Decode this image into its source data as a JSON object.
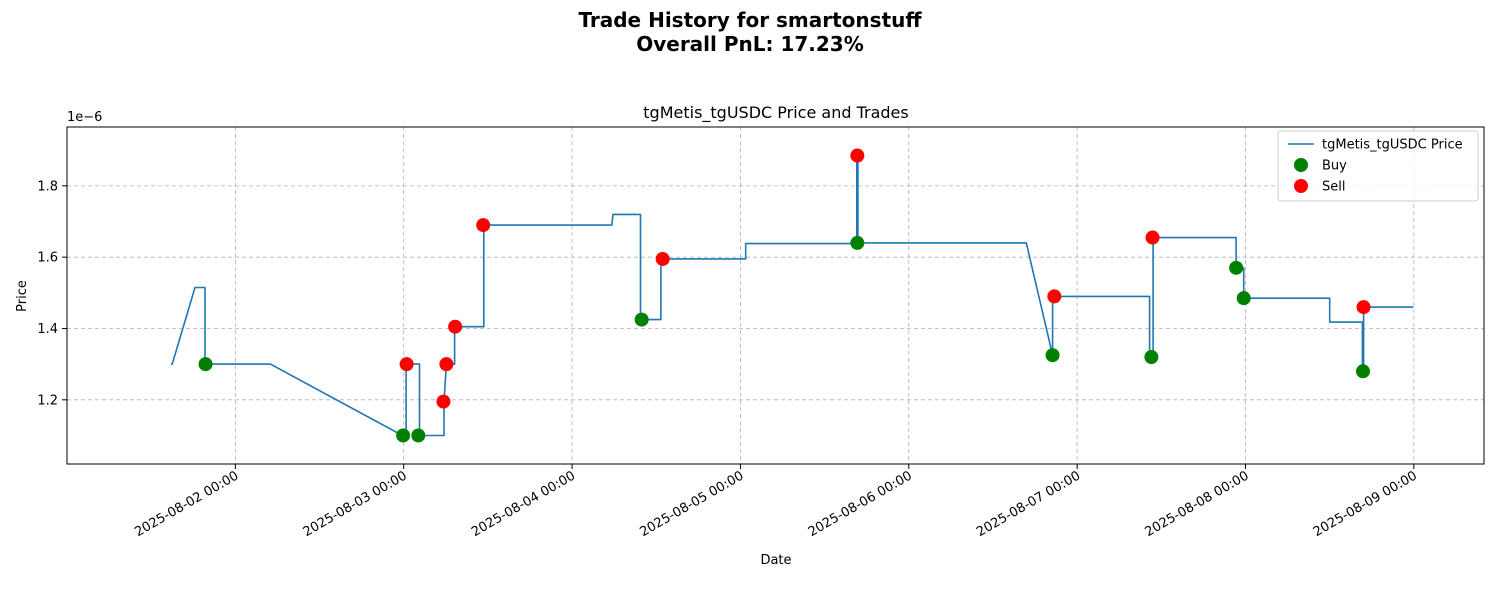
{
  "chart_data": {
    "type": "line",
    "suptitle_line1": "Trade History for smartonstuff",
    "suptitle_line2": "Overall PnL: 17.23%",
    "title": "tgMetis_tgUSDC Price and Trades",
    "xlabel": "Date",
    "ylabel": "Price",
    "y_offset_label": "1e−6",
    "y_scale": 1e-06,
    "xlim": [
      "2025-08-01T00:00",
      "2025-08-09T10:00"
    ],
    "ylim": [
      1.02,
      1.965
    ],
    "x_ticks": [
      {
        "x": "2025-08-02T00:00",
        "label": "2025-08-02 00:00"
      },
      {
        "x": "2025-08-03T00:00",
        "label": "2025-08-03 00:00"
      },
      {
        "x": "2025-08-04T00:00",
        "label": "2025-08-04 00:00"
      },
      {
        "x": "2025-08-05T00:00",
        "label": "2025-08-05 00:00"
      },
      {
        "x": "2025-08-06T00:00",
        "label": "2025-08-06 00:00"
      },
      {
        "x": "2025-08-07T00:00",
        "label": "2025-08-07 00:00"
      },
      {
        "x": "2025-08-08T00:00",
        "label": "2025-08-08 00:00"
      },
      {
        "x": "2025-08-09T00:00",
        "label": "2025-08-09 00:00"
      }
    ],
    "y_ticks": [
      {
        "y": 1.2,
        "label": "1.2"
      },
      {
        "y": 1.4,
        "label": "1.4"
      },
      {
        "y": 1.6,
        "label": "1.6"
      },
      {
        "y": 1.8,
        "label": "1.8"
      }
    ],
    "grid": true,
    "legend_position": "top-right",
    "series": [
      {
        "name": "tgMetis_tgUSDC Price",
        "kind": "line",
        "color": "#1f77b4",
        "points": [
          [
            "2025-08-01T14:48",
            1.3
          ],
          [
            "2025-08-01T15:00",
            1.3
          ],
          [
            "2025-08-01T18:15",
            1.515
          ],
          [
            "2025-08-01T19:40",
            1.515
          ],
          [
            "2025-08-01T19:40",
            1.3
          ],
          [
            "2025-08-02T05:00",
            1.3
          ],
          [
            "2025-08-02T23:50",
            1.1
          ],
          [
            "2025-08-03T00:20",
            1.1
          ],
          [
            "2025-08-03T00:20",
            1.3
          ],
          [
            "2025-08-03T02:15",
            1.3
          ],
          [
            "2025-08-03T02:15",
            1.1
          ],
          [
            "2025-08-03T05:45",
            1.1
          ],
          [
            "2025-08-03T05:45",
            1.195
          ],
          [
            "2025-08-03T06:05",
            1.3
          ],
          [
            "2025-08-03T07:15",
            1.3
          ],
          [
            "2025-08-03T07:15",
            1.405
          ],
          [
            "2025-08-03T11:25",
            1.405
          ],
          [
            "2025-08-03T11:25",
            1.69
          ],
          [
            "2025-08-04T05:40",
            1.69
          ],
          [
            "2025-08-04T05:50",
            1.72
          ],
          [
            "2025-08-04T09:45",
            1.72
          ],
          [
            "2025-08-04T09:45",
            1.425
          ],
          [
            "2025-08-04T12:40",
            1.425
          ],
          [
            "2025-08-04T12:40",
            1.595
          ],
          [
            "2025-08-05T00:45",
            1.595
          ],
          [
            "2025-08-05T00:45",
            1.638
          ],
          [
            "2025-08-05T16:35",
            1.638
          ],
          [
            "2025-08-05T16:35",
            1.885
          ],
          [
            "2025-08-05T16:45",
            1.885
          ],
          [
            "2025-08-05T16:45",
            1.64
          ],
          [
            "2025-08-06T16:45",
            1.64
          ],
          [
            "2025-08-06T20:30",
            1.325
          ],
          [
            "2025-08-06T20:30",
            1.49
          ],
          [
            "2025-08-07T10:20",
            1.49
          ],
          [
            "2025-08-07T10:20",
            1.32
          ],
          [
            "2025-08-07T10:50",
            1.32
          ],
          [
            "2025-08-07T10:50",
            1.655
          ],
          [
            "2025-08-07T22:40",
            1.655
          ],
          [
            "2025-08-07T22:40",
            1.57
          ],
          [
            "2025-08-07T23:45",
            1.57
          ],
          [
            "2025-08-07T23:45",
            1.485
          ],
          [
            "2025-08-08T12:00",
            1.485
          ],
          [
            "2025-08-08T12:00",
            1.418
          ],
          [
            "2025-08-08T16:40",
            1.418
          ],
          [
            "2025-08-08T16:40",
            1.28
          ],
          [
            "2025-08-08T16:50",
            1.28
          ],
          [
            "2025-08-08T16:50",
            1.46
          ],
          [
            "2025-08-08T23:55",
            1.46
          ]
        ]
      },
      {
        "name": "Buy",
        "kind": "scatter",
        "color": "#008000",
        "points": [
          [
            "2025-08-01T19:45",
            1.3
          ],
          [
            "2025-08-02T23:55",
            1.1
          ],
          [
            "2025-08-03T02:05",
            1.1
          ],
          [
            "2025-08-04T09:55",
            1.425
          ],
          [
            "2025-08-05T16:40",
            1.64
          ],
          [
            "2025-08-06T20:30",
            1.325
          ],
          [
            "2025-08-07T10:35",
            1.32
          ],
          [
            "2025-08-07T22:40",
            1.57
          ],
          [
            "2025-08-07T23:45",
            1.485
          ],
          [
            "2025-08-08T16:45",
            1.28
          ]
        ]
      },
      {
        "name": "Sell",
        "kind": "scatter",
        "color": "#ff0000",
        "points": [
          [
            "2025-08-03T00:25",
            1.3
          ],
          [
            "2025-08-03T05:40",
            1.195
          ],
          [
            "2025-08-03T06:05",
            1.3
          ],
          [
            "2025-08-03T07:20",
            1.405
          ],
          [
            "2025-08-03T11:20",
            1.69
          ],
          [
            "2025-08-04T12:55",
            1.595
          ],
          [
            "2025-08-05T16:40",
            1.885
          ],
          [
            "2025-08-06T20:45",
            1.49
          ],
          [
            "2025-08-07T10:45",
            1.655
          ],
          [
            "2025-08-08T16:50",
            1.46
          ]
        ]
      }
    ]
  }
}
